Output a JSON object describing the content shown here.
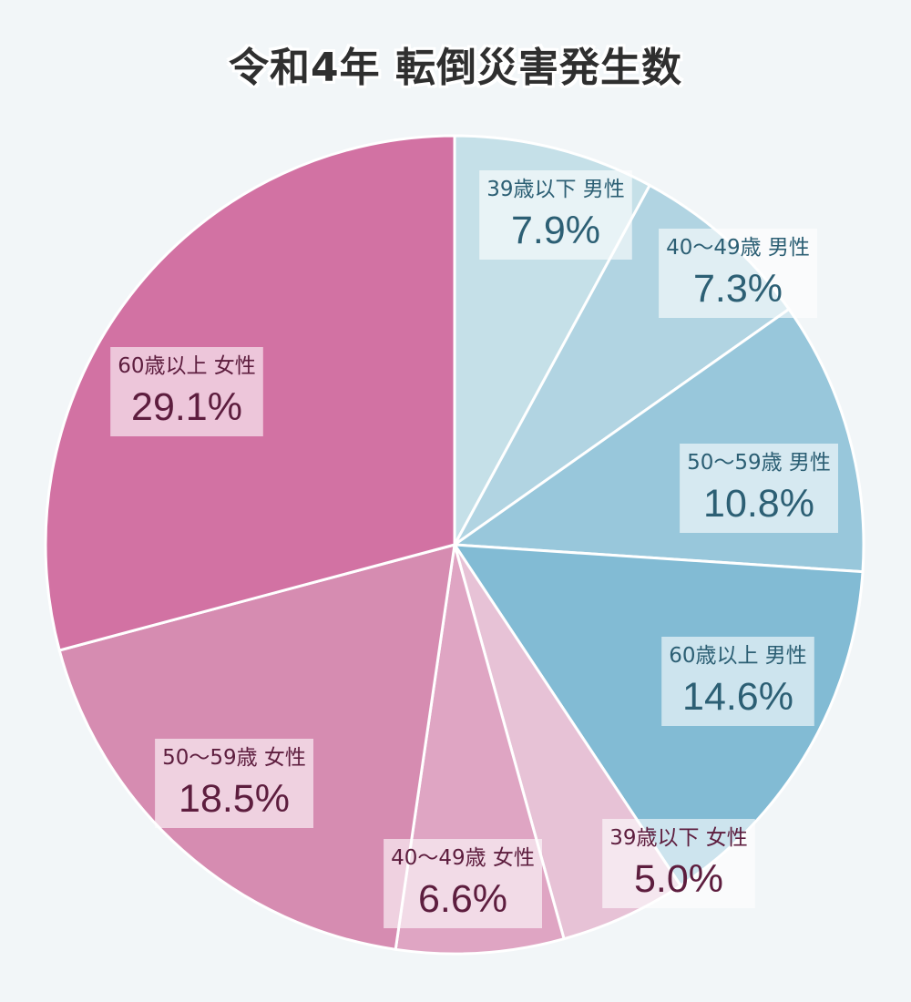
{
  "title": "令和4年 転倒災害発生数",
  "chart_data": {
    "type": "pie",
    "title": "令和4年 転倒災害発生数",
    "start": "12 o'clock",
    "direction": "clockwise",
    "slices": [
      {
        "label": "39歳以下 男性",
        "value": 7.9,
        "value_label": "7.9%",
        "color": "#c5e0e8",
        "text_color": "#2c5f74"
      },
      {
        "label": "40〜49歳 男性",
        "value": 7.3,
        "value_label": "7.3%",
        "color": "#b1d4e2",
        "text_color": "#2c5f74"
      },
      {
        "label": "50〜59歳 男性",
        "value": 10.8,
        "value_label": "10.8%",
        "color": "#98c7db",
        "text_color": "#2c5f74"
      },
      {
        "label": "60歳以上 男性",
        "value": 14.6,
        "value_label": "14.6%",
        "color": "#82bbd4",
        "text_color": "#2c5f74"
      },
      {
        "label": "39歳以下 女性",
        "value": 5.0,
        "value_label": "5.0%",
        "color": "#e7c2d6",
        "text_color": "#5d1d3e"
      },
      {
        "label": "40〜49歳 女性",
        "value": 6.6,
        "value_label": "6.6%",
        "color": "#dfa5c3",
        "text_color": "#5d1d3e"
      },
      {
        "label": "50〜59歳 女性",
        "value": 18.5,
        "value_label": "18.5%",
        "color": "#d68cb1",
        "text_color": "#5d1d3e"
      },
      {
        "label": "60歳以上 女性",
        "value": 29.1,
        "value_label": "29.1%",
        "color": "#d272a3",
        "text_color": "#5d1d3e"
      }
    ]
  }
}
